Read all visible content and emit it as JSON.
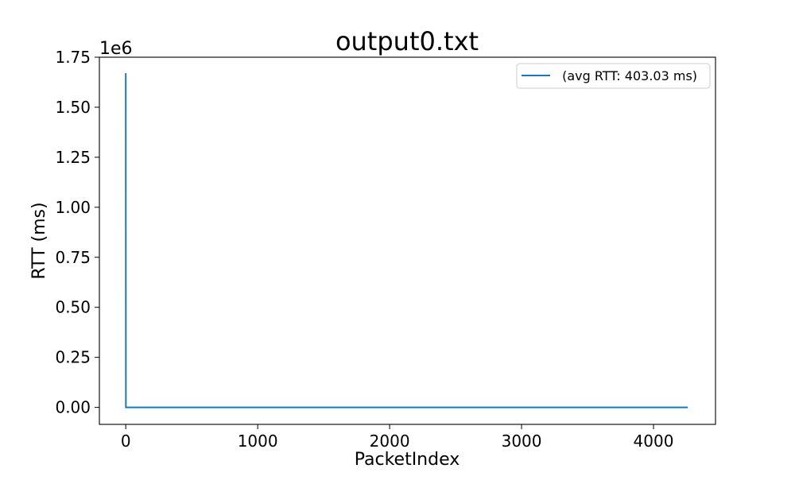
{
  "chart_data": {
    "type": "line",
    "title": "output0.txt",
    "xlabel": "PacketIndex",
    "ylabel": "RTT (ms)",
    "y_offset_label": "1e6",
    "xlim": [
      -200,
      4470
    ],
    "ylim": [
      -85000,
      1750000
    ],
    "x_ticks": [
      0,
      1000,
      2000,
      3000,
      4000
    ],
    "x_tick_labels": [
      "0",
      "1000",
      "2000",
      "3000",
      "4000"
    ],
    "y_ticks": [
      0,
      250000,
      500000,
      750000,
      1000000,
      1250000,
      1500000,
      1750000
    ],
    "y_tick_labels": [
      "0.00",
      "0.25",
      "0.50",
      "0.75",
      "1.00",
      "1.25",
      "1.50",
      "1.75"
    ],
    "grid": false,
    "legend_position": "top-right",
    "series": [
      {
        "name": " (avg RTT: 403.03 ms)",
        "color": "#1f77b4",
        "x": [
          0,
          1,
          4260
        ],
        "y": [
          1670000,
          0,
          0
        ]
      }
    ]
  }
}
